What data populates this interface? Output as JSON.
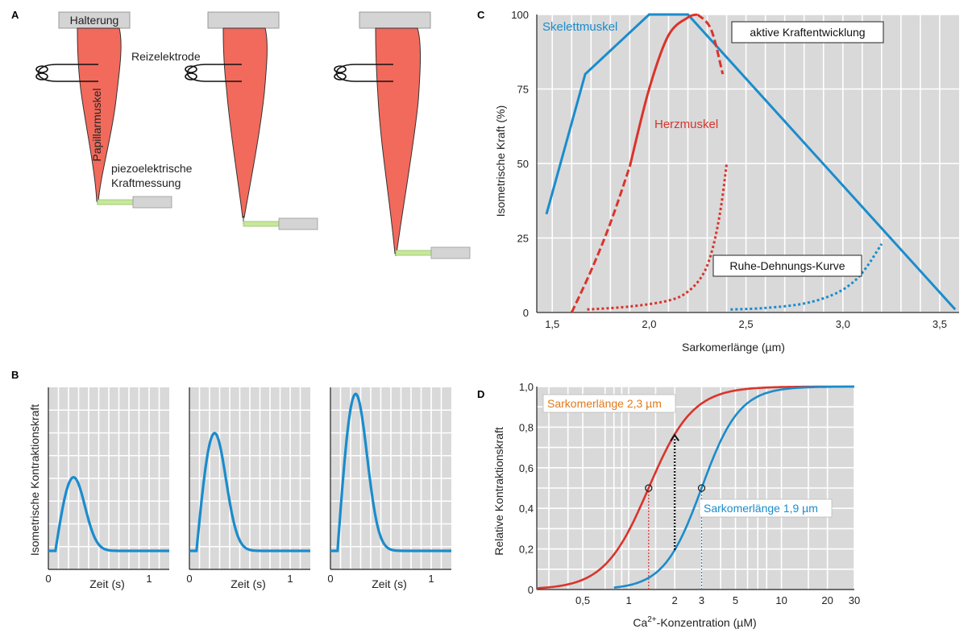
{
  "panel_labels": {
    "a": "A",
    "b": "B",
    "c": "C",
    "d": "D"
  },
  "colors": {
    "skeletal": "#1a8ccc",
    "cardiac": "#d9342b",
    "muscle_fill": "#f26a5c",
    "holder": "#d4d4d4",
    "piezo": "#c6e89a",
    "plot_bg": "#d9d9d9"
  },
  "panel_a": {
    "holder_label": "Halterung",
    "muscle_label": "Papillarmuskel",
    "electrode_label": "Reizelektrode",
    "force_label_1": "piezoelektrische",
    "force_label_2": "Kraftmessung"
  },
  "chart_data": [
    {
      "id": "C",
      "type": "line",
      "xlabel": "Sarkomerlänge (µm)",
      "ylabel": "Isometrische Kraft (%)",
      "xlim": [
        1.42,
        3.6
      ],
      "ylim": [
        0,
        100
      ],
      "xticks": [
        1.5,
        2.0,
        2.5,
        3.0,
        3.5
      ],
      "xtick_labels": [
        "1,5",
        "2,0",
        "2,5",
        "3,0",
        "3,5"
      ],
      "yticks": [
        0,
        25,
        50,
        75,
        100
      ],
      "ytick_labels": [
        "0",
        "25",
        "50",
        "75",
        "100"
      ],
      "grid": true,
      "series": [
        {
          "name": "Skelettmuskel",
          "style": "solid",
          "color": "#1a8ccc",
          "x": [
            1.47,
            1.67,
            2.0,
            2.2,
            3.58
          ],
          "y": [
            33,
            80,
            100,
            100,
            1
          ]
        },
        {
          "style": "dotted",
          "color": "#1a8ccc",
          "x": [
            2.42,
            2.6,
            2.8,
            2.95,
            3.05,
            3.12,
            3.2
          ],
          "y": [
            1,
            1.5,
            3,
            6,
            10,
            15,
            23
          ]
        },
        {
          "name": "Herzmuskel",
          "style": "solid",
          "color": "#d9342b",
          "x": [
            1.9,
            2.0,
            2.1,
            2.2,
            2.25
          ],
          "y": [
            49,
            75,
            93,
            99,
            100
          ]
        },
        {
          "style": "dashed",
          "color": "#d9342b",
          "x": [
            1.6,
            1.7,
            1.8,
            1.9
          ],
          "y": [
            0,
            14,
            30,
            49
          ]
        },
        {
          "style": "dashed",
          "color": "#d9342b",
          "x": [
            2.25,
            2.32,
            2.38
          ],
          "y": [
            100,
            95,
            80
          ]
        },
        {
          "style": "dotted",
          "color": "#d9342b",
          "x": [
            1.68,
            1.9,
            2.1,
            2.2,
            2.28,
            2.33,
            2.37,
            2.4
          ],
          "y": [
            1,
            2,
            4,
            7,
            13,
            22,
            35,
            50
          ]
        }
      ],
      "annotations": {
        "skeletal": "Skelettmuskel",
        "cardiac": "Herzmuskel",
        "active": "aktive Kraftentwicklung",
        "passive": "Ruhe-Dehnungs-Kurve"
      }
    },
    {
      "id": "B",
      "type": "line",
      "ylabel": "Isometrische Kontraktionskraft",
      "xlabel": "Zeit (s)",
      "xlim": [
        0,
        1.2
      ],
      "xtick_labels": [
        "0",
        "1"
      ],
      "grid": true,
      "series": [
        {
          "color": "#1a8ccc",
          "peak_time": 0.25,
          "peak": 0.45
        },
        {
          "color": "#1a8ccc",
          "peak_time": 0.25,
          "peak": 0.72
        },
        {
          "color": "#1a8ccc",
          "peak_time": 0.25,
          "peak": 0.96
        }
      ]
    },
    {
      "id": "D",
      "type": "line",
      "xscale": "log",
      "xlabel_prefix": "Ca",
      "xlabel_sup": "2+",
      "xlabel_suffix": "-Konzentration (µM)",
      "ylabel": "Relative Kontraktionskraft",
      "xlim": [
        0.25,
        30
      ],
      "ylim": [
        0,
        1.0
      ],
      "xticks": [
        0.5,
        1,
        2,
        3,
        5,
        10,
        20,
        30
      ],
      "xtick_labels": [
        "0,5",
        "1",
        "2",
        "3",
        "5",
        "10",
        "20",
        "30"
      ],
      "yticks": [
        0,
        0.2,
        0.4,
        0.6,
        0.8,
        1.0
      ],
      "ytick_labels": [
        "0",
        "0,2",
        "0,4",
        "0,6",
        "0,8",
        "1,0"
      ],
      "grid": true,
      "series": [
        {
          "name": "Sarkomerlänge 2,3 µm",
          "color": "#d9342b",
          "ec50": 1.35,
          "hill": 3.0,
          "xmin": 0.25
        },
        {
          "name": "Sarkomerlänge 1,9 µm",
          "color": "#1a8ccc",
          "ec50": 3.0,
          "hill": 3.5,
          "xmin": 0.8
        }
      ],
      "legend": {
        "red": "Sarkomerlänge 2,3 µm",
        "blue": "Sarkomerlänge 1,9 µm"
      }
    }
  ]
}
